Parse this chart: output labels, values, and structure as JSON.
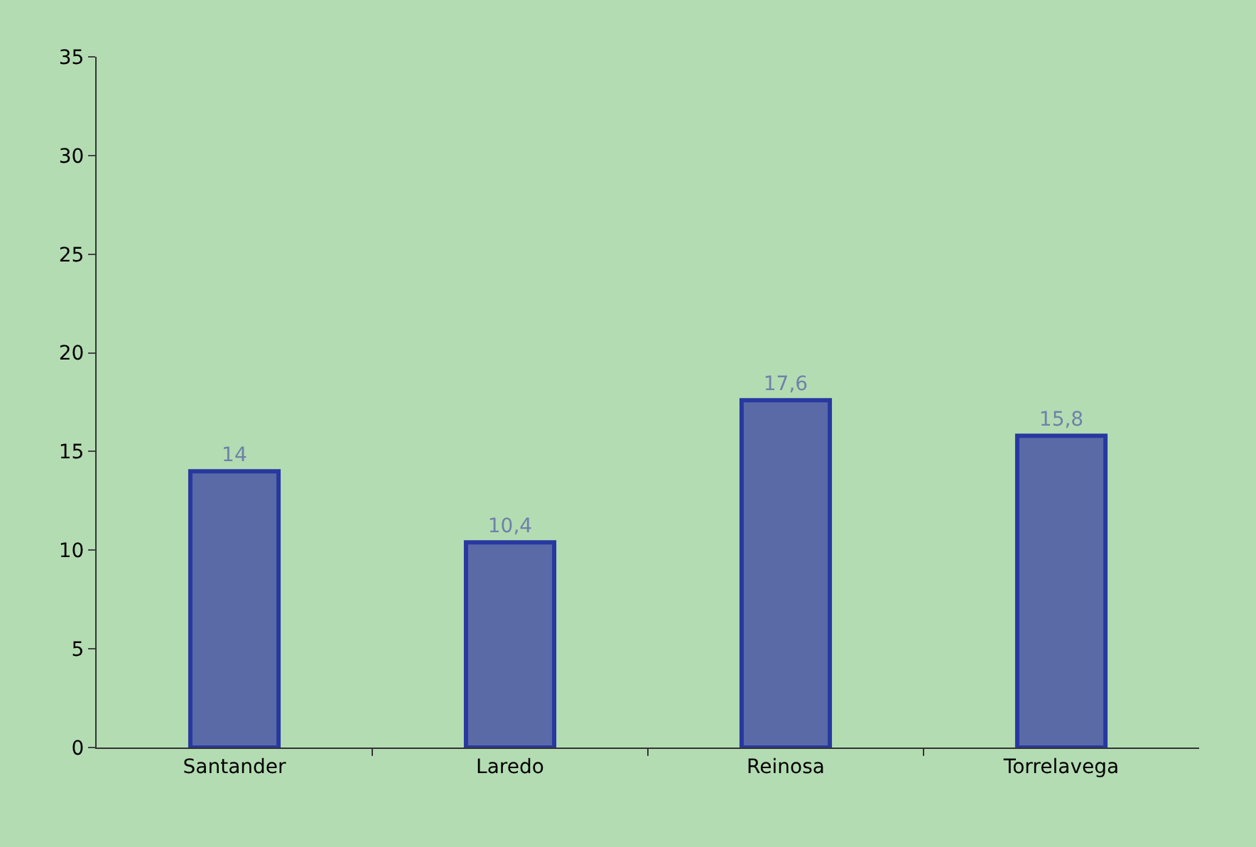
{
  "chart_data": {
    "type": "bar",
    "categories": [
      "Santander",
      "Laredo",
      "Reinosa",
      "Torrelavega"
    ],
    "values": [
      14,
      10.4,
      17.6,
      15.8
    ],
    "value_labels": [
      "14",
      "10,4",
      "17,6",
      "15,8"
    ],
    "color": "#5a6aa6",
    "ylim": [
      0,
      35
    ],
    "yticks": [
      0,
      5,
      10,
      15,
      20,
      25,
      30,
      35
    ]
  }
}
